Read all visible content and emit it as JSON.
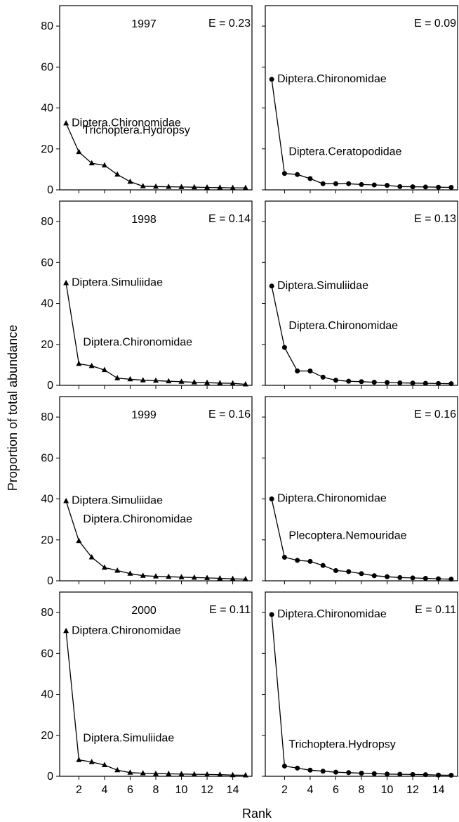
{
  "figure": {
    "ylabel": "Proportion of total abundance",
    "xlabel": "Rank"
  },
  "chart_data": [
    {
      "type": "line",
      "panel": "row1-left",
      "marker": "triangle",
      "year_label": "1997",
      "evenness_label": "E = 0.23",
      "x": [
        1,
        2,
        3,
        4,
        5,
        6,
        7,
        8,
        9,
        10,
        11,
        12,
        13,
        14,
        15
      ],
      "values": [
        32.5,
        18.5,
        13,
        12,
        7.5,
        4,
        1.8,
        1.6,
        1.5,
        1.4,
        1.3,
        1.2,
        1.1,
        1.0,
        1.0
      ],
      "annotations": [
        {
          "text": "Diptera.Chironomidae",
          "rank": 1,
          "value": 32.5
        },
        {
          "text": "Trichoptera.Hydropsy",
          "rank": 2,
          "value": 18.5
        }
      ],
      "xlim": [
        0.5,
        15.5
      ],
      "ylim": [
        0,
        90
      ],
      "xticks": [
        2,
        4,
        6,
        8,
        10,
        12,
        14
      ],
      "yticks": [
        0,
        20,
        40,
        60,
        80
      ],
      "show_yticks": true
    },
    {
      "type": "line",
      "panel": "row1-right",
      "marker": "circle",
      "year_label": "",
      "evenness_label": "E = 0.09",
      "x": [
        1,
        2,
        3,
        4,
        5,
        6,
        7,
        8,
        9,
        10,
        11,
        12,
        13,
        14,
        15
      ],
      "values": [
        54,
        8,
        7.5,
        5.5,
        3,
        3,
        3,
        2.6,
        2.4,
        2.2,
        1.6,
        1.5,
        1.4,
        1.3,
        1.2
      ],
      "annotations": [
        {
          "text": "Diptera.Chironomidae",
          "rank": 1,
          "value": 54
        },
        {
          "text": "Diptera.Ceratopodidae",
          "rank": 2,
          "value": 8
        }
      ],
      "xlim": [
        0.5,
        15.5
      ],
      "ylim": [
        0,
        90
      ],
      "xticks": [
        2,
        4,
        6,
        8,
        10,
        12,
        14
      ],
      "yticks": [
        0,
        20,
        40,
        60,
        80
      ],
      "show_yticks": false
    },
    {
      "type": "line",
      "panel": "row2-left",
      "marker": "triangle",
      "year_label": "1998",
      "evenness_label": "E = 0.14",
      "x": [
        1,
        2,
        3,
        4,
        5,
        6,
        7,
        8,
        9,
        10,
        11,
        12,
        13,
        14,
        15
      ],
      "values": [
        50,
        10.5,
        9.5,
        7.5,
        3.5,
        3,
        2.5,
        2.3,
        2,
        1.8,
        1.5,
        1.3,
        1.1,
        1.0,
        0.5
      ],
      "annotations": [
        {
          "text": "Diptera.Simuliidae",
          "rank": 1,
          "value": 50
        },
        {
          "text": "Diptera.Chironomidae",
          "rank": 2,
          "value": 10.5
        }
      ],
      "xlim": [
        0.5,
        15.5
      ],
      "ylim": [
        0,
        90
      ],
      "xticks": [
        2,
        4,
        6,
        8,
        10,
        12,
        14
      ],
      "yticks": [
        0,
        20,
        40,
        60,
        80
      ],
      "show_yticks": true
    },
    {
      "type": "line",
      "panel": "row2-right",
      "marker": "circle",
      "year_label": "",
      "evenness_label": "E = 0.13",
      "x": [
        1,
        2,
        3,
        4,
        5,
        6,
        7,
        8,
        9,
        10,
        11,
        12,
        13,
        14,
        15
      ],
      "values": [
        48.5,
        18.5,
        7,
        7,
        4,
        2.5,
        2,
        1.8,
        1.5,
        1.4,
        1.2,
        1.1,
        1.0,
        0.9,
        0.8
      ],
      "annotations": [
        {
          "text": "Diptera.Simuliidae",
          "rank": 1,
          "value": 48.5
        },
        {
          "text": "Diptera.Chironomidae",
          "rank": 2,
          "value": 18.5
        }
      ],
      "xlim": [
        0.5,
        15.5
      ],
      "ylim": [
        0,
        90
      ],
      "xticks": [
        2,
        4,
        6,
        8,
        10,
        12,
        14
      ],
      "yticks": [
        0,
        20,
        40,
        60,
        80
      ],
      "show_yticks": false
    },
    {
      "type": "line",
      "panel": "row3-left",
      "marker": "triangle",
      "year_label": "1999",
      "evenness_label": "E = 0.16",
      "x": [
        1,
        2,
        3,
        4,
        5,
        6,
        7,
        8,
        9,
        10,
        11,
        12,
        13,
        14,
        15
      ],
      "values": [
        39,
        19.5,
        11.5,
        6.5,
        5,
        3.5,
        2.5,
        2.2,
        2,
        1.8,
        1.6,
        1.4,
        1.2,
        1.0,
        0.8
      ],
      "annotations": [
        {
          "text": "Diptera.Simuliidae",
          "rank": 1,
          "value": 39
        },
        {
          "text": "Diptera.Chironomidae",
          "rank": 2,
          "value": 19.5
        }
      ],
      "xlim": [
        0.5,
        15.5
      ],
      "ylim": [
        0,
        90
      ],
      "xticks": [
        2,
        4,
        6,
        8,
        10,
        12,
        14
      ],
      "yticks": [
        0,
        20,
        40,
        60,
        80
      ],
      "show_yticks": true
    },
    {
      "type": "line",
      "panel": "row3-right",
      "marker": "circle",
      "year_label": "",
      "evenness_label": "E = 0.16",
      "x": [
        1,
        2,
        3,
        4,
        5,
        6,
        7,
        8,
        9,
        10,
        11,
        12,
        13,
        14,
        15
      ],
      "values": [
        40,
        11.5,
        10,
        9.5,
        7.5,
        5,
        4.5,
        3.5,
        2.5,
        2,
        1.6,
        1.4,
        1.2,
        1.0,
        0.8
      ],
      "annotations": [
        {
          "text": "Diptera.Chironomidae",
          "rank": 1,
          "value": 40
        },
        {
          "text": "Plecoptera.Nemouridae",
          "rank": 2,
          "value": 11.5
        }
      ],
      "xlim": [
        0.5,
        15.5
      ],
      "ylim": [
        0,
        90
      ],
      "xticks": [
        2,
        4,
        6,
        8,
        10,
        12,
        14
      ],
      "yticks": [
        0,
        20,
        40,
        60,
        80
      ],
      "show_yticks": false
    },
    {
      "type": "line",
      "panel": "row4-left",
      "marker": "triangle",
      "year_label": "2000",
      "evenness_label": "E = 0.11",
      "x": [
        1,
        2,
        3,
        4,
        5,
        6,
        7,
        8,
        9,
        10,
        11,
        12,
        13,
        14,
        15
      ],
      "values": [
        71,
        8,
        7,
        5.5,
        3,
        1.8,
        1.5,
        1.3,
        1.2,
        1.1,
        1.0,
        0.9,
        0.8,
        0.6,
        0.5
      ],
      "annotations": [
        {
          "text": "Diptera.Chironomidae",
          "rank": 1,
          "value": 71
        },
        {
          "text": "Diptera.Simuliidae",
          "rank": 2,
          "value": 8
        }
      ],
      "xlim": [
        0.5,
        15.5
      ],
      "ylim": [
        0,
        90
      ],
      "xticks": [
        2,
        4,
        6,
        8,
        10,
        12,
        14
      ],
      "yticks": [
        0,
        20,
        40,
        60,
        80
      ],
      "show_yticks": true
    },
    {
      "type": "line",
      "panel": "row4-right",
      "marker": "circle",
      "year_label": "",
      "evenness_label": "E = 0.11",
      "x": [
        1,
        2,
        3,
        4,
        5,
        6,
        7,
        8,
        9,
        10,
        11,
        12,
        13,
        14,
        15
      ],
      "values": [
        79,
        5,
        4,
        3,
        2.5,
        2,
        1.8,
        1.5,
        1.3,
        1.1,
        1.0,
        0.9,
        0.8,
        0.6,
        0.5
      ],
      "annotations": [
        {
          "text": "Diptera.Chironomidae",
          "rank": 1,
          "value": 79
        },
        {
          "text": "Trichoptera.Hydropsy",
          "rank": 2,
          "value": 5
        }
      ],
      "xlim": [
        0.5,
        15.5
      ],
      "ylim": [
        0,
        90
      ],
      "xticks": [
        2,
        4,
        6,
        8,
        10,
        12,
        14
      ],
      "yticks": [
        0,
        20,
        40,
        60,
        80
      ],
      "show_yticks": false
    }
  ]
}
